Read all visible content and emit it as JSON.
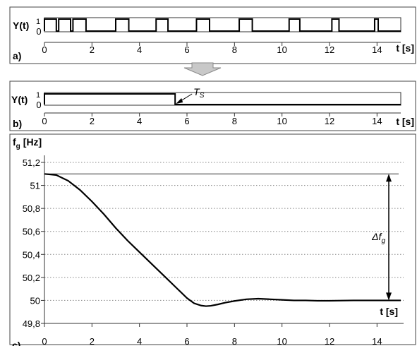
{
  "colors": {
    "panel_border": "#444444",
    "signal": "#000000",
    "grid": "#888888",
    "arrow_fill": "#c8c8c8",
    "arrow_stroke": "#888888"
  },
  "icons": {
    "transition_arrow": "down-arrow-icon"
  },
  "chart_data": [
    {
      "type": "line",
      "panel_label": "a)",
      "ylabel": "Y(t)",
      "xlabel": "t [s]",
      "yticks": [
        "0",
        "1"
      ],
      "xticks": [
        "0",
        "2",
        "4",
        "6",
        "8",
        "10",
        "12",
        "14"
      ],
      "xlim": [
        0,
        15
      ],
      "ylim": [
        0,
        1
      ],
      "pulses": [
        [
          0,
          0.5
        ],
        [
          0.6,
          1.1
        ],
        [
          1.2,
          1.75
        ],
        [
          3.0,
          3.55
        ],
        [
          4.7,
          5.2
        ],
        [
          6.4,
          6.95
        ],
        [
          8.2,
          8.75
        ],
        [
          10.3,
          10.75
        ],
        [
          12.1,
          12.4
        ],
        [
          13.9,
          14.05
        ]
      ]
    },
    {
      "type": "line",
      "panel_label": "b)",
      "ylabel": "Y(t)",
      "xlabel": "t [s]",
      "yticks": [
        "0",
        "1"
      ],
      "xticks": [
        "0",
        "2",
        "4",
        "6",
        "8",
        "10",
        "12",
        "14"
      ],
      "xlim": [
        0,
        15
      ],
      "ylim": [
        0,
        1
      ],
      "pulses": [
        [
          0,
          5.5
        ]
      ],
      "annotation": {
        "main": "T",
        "sub": "S",
        "at_x": 5.5
      }
    },
    {
      "type": "line",
      "panel_label": "c)",
      "ylabel_main": "f",
      "ylabel_sub": "g",
      "ylabel_unit": "[Hz]",
      "xlabel": "t [s]",
      "xticks": [
        "0",
        "2",
        "4",
        "6",
        "8",
        "10",
        "12",
        "14"
      ],
      "yticks": [
        "49,8",
        "50",
        "50,2",
        "50,4",
        "50,6",
        "50,8",
        "51",
        "51,2"
      ],
      "ytick_values": [
        49.8,
        50.0,
        50.2,
        50.4,
        50.6,
        50.8,
        51.0,
        51.2
      ],
      "xlim": [
        0,
        15
      ],
      "ylim": [
        49.8,
        51.2
      ],
      "grid": true,
      "x": [
        0,
        0.5,
        1,
        1.5,
        2,
        2.5,
        3,
        3.5,
        4,
        4.5,
        5,
        5.5,
        6,
        6.3,
        6.6,
        6.8,
        7,
        7.3,
        7.6,
        8,
        8.5,
        9,
        9.5,
        10,
        10.5,
        11,
        11.5,
        12,
        13,
        14,
        15
      ],
      "y": [
        51.1,
        51.09,
        51.04,
        50.96,
        50.86,
        50.75,
        50.63,
        50.52,
        50.42,
        50.32,
        50.22,
        50.12,
        50.02,
        49.975,
        49.955,
        49.95,
        49.953,
        49.965,
        49.98,
        49.995,
        50.01,
        50.015,
        50.01,
        50.005,
        50.0,
        50.0,
        49.997,
        49.997,
        50.0,
        50.0,
        50.0
      ],
      "annotation": {
        "delta_main": "Δf",
        "delta_sub": "g",
        "from": 50.0,
        "to": 51.1
      }
    }
  ]
}
